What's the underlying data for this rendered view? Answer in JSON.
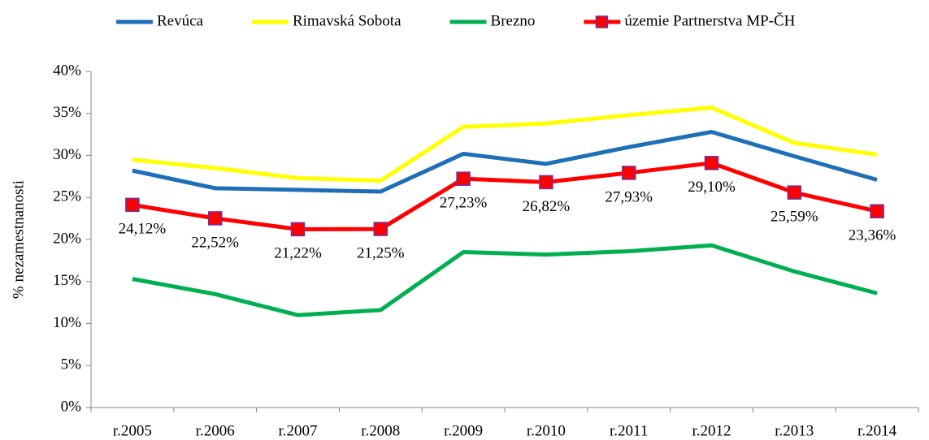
{
  "chart_data": {
    "type": "line",
    "y_label": "% nezamestnanosti",
    "categories": [
      "r.2005",
      "r.2006",
      "r.2007",
      "r.2008",
      "r.2009",
      "r.2010",
      "r.2011",
      "r.2012",
      "r.2013",
      "r.2014"
    ],
    "series": [
      {
        "name": "Revúca",
        "color": "#1f6fb8",
        "values": [
          28.2,
          26.1,
          25.9,
          25.7,
          30.2,
          29.0,
          31.0,
          32.8,
          29.9,
          27.1
        ]
      },
      {
        "name": "Rimavská Sobota",
        "color": "#ffff00",
        "values": [
          29.5,
          28.5,
          27.3,
          27.0,
          33.4,
          33.8,
          34.8,
          35.7,
          31.5,
          30.1
        ]
      },
      {
        "name": "Brezno",
        "color": "#00b050",
        "values": [
          15.3,
          13.5,
          11.0,
          11.6,
          18.5,
          18.2,
          18.6,
          19.3,
          16.2,
          13.6
        ]
      },
      {
        "name": "územie Partnerstva MP-ČH",
        "color": "#ff0000",
        "marker": "square",
        "marker_edge": "#7030a0",
        "values": [
          24.12,
          22.52,
          21.22,
          21.25,
          27.23,
          26.82,
          27.93,
          29.1,
          25.59,
          23.36
        ],
        "value_labels": [
          "24,12%",
          "22,52%",
          "21,22%",
          "21,25%",
          "27,23%",
          "26,82%",
          "27,93%",
          "29,10%",
          "25,59%",
          "23,36%"
        ]
      }
    ],
    "ylim": [
      0,
      40
    ],
    "yticks": [
      {
        "value": 0,
        "label": "0%"
      },
      {
        "value": 5,
        "label": "5%"
      },
      {
        "value": 10,
        "label": "10%"
      },
      {
        "value": 15,
        "label": "15%"
      },
      {
        "value": 20,
        "label": "20%"
      },
      {
        "value": 25,
        "label": "25%"
      },
      {
        "value": 30,
        "label": "30%"
      },
      {
        "value": 35,
        "label": "35%"
      },
      {
        "value": 40,
        "label": "40%"
      }
    ],
    "legend": "top"
  }
}
